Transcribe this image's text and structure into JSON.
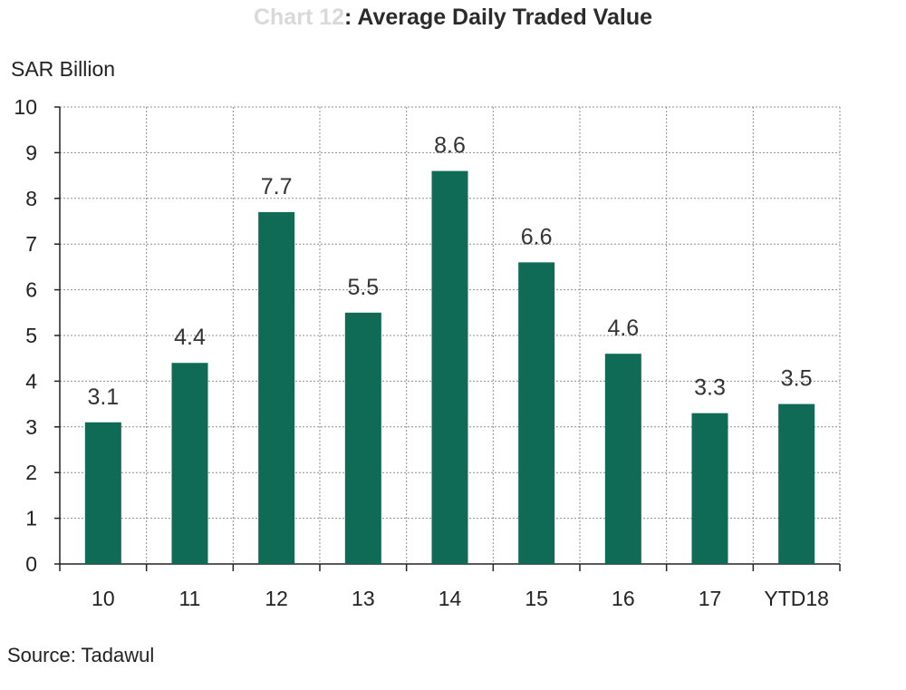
{
  "chart_data": {
    "type": "bar",
    "title_prefix": "Chart 12",
    "title": ": Average Daily Traded Value",
    "ylabel": "SAR Billion",
    "xlabel": "",
    "categories": [
      "10",
      "11",
      "12",
      "13",
      "14",
      "15",
      "16",
      "17",
      "YTD18"
    ],
    "values": [
      3.1,
      4.4,
      7.7,
      5.5,
      8.6,
      6.6,
      4.6,
      3.3,
      3.5
    ],
    "data_labels": [
      "3.1",
      "4.4",
      "7.7",
      "5.5",
      "8.6",
      "6.6",
      "4.6",
      "3.3",
      "3.5"
    ],
    "ylim": [
      0,
      10
    ],
    "yticks": [
      0,
      1,
      2,
      3,
      4,
      5,
      6,
      7,
      8,
      9,
      10
    ],
    "grid": true,
    "bar_color": "#0f6b56",
    "source": "Source: Tadawul"
  }
}
